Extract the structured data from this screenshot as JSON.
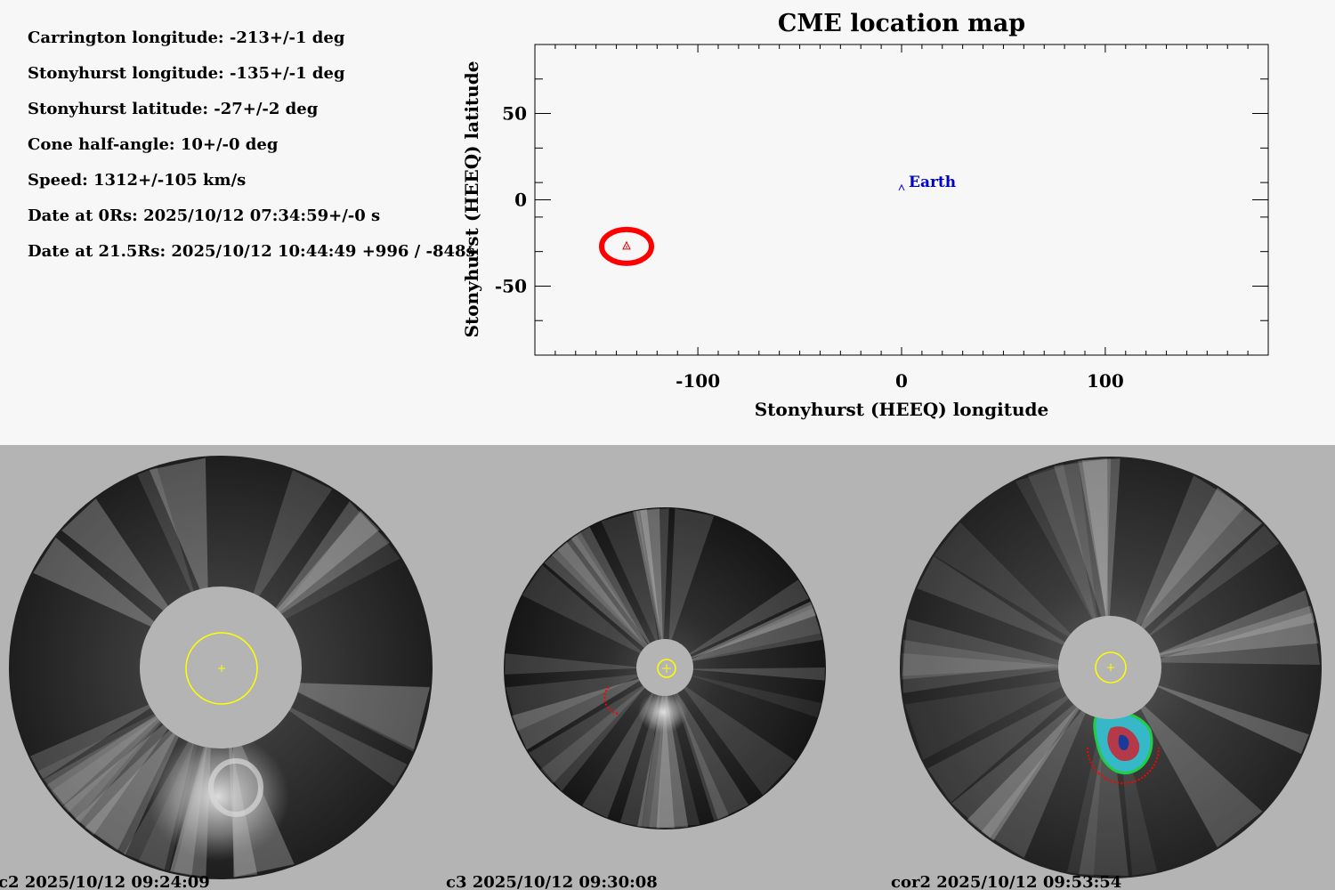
{
  "params": [
    "Carrington longitude: -213+/-1 deg",
    "Stonyhurst longitude: -135+/-1 deg",
    "Stonyhurst latitude: -27+/-2 deg",
    "Cone half-angle: 10+/-0 deg",
    "Speed: 1312+/-105 km/s",
    "Date at 0Rs: 2025/10/12 07:34:59+/-0 s",
    "Date at 21.5Rs: 2025/10/12 10:44:49 +996 / -848s"
  ],
  "chart_data": {
    "type": "scatter",
    "title": "CME location map",
    "xlabel": "Stonyhurst (HEEQ) longitude",
    "ylabel": "Stonyhurst (HEEQ) latitude",
    "xlim": [
      -180,
      180
    ],
    "ylim": [
      -90,
      90
    ],
    "xticks": [
      -100,
      0,
      100
    ],
    "xtick_labels": [
      "-100",
      "0",
      "100"
    ],
    "yticks": [
      -50,
      0,
      50
    ],
    "ytick_labels": [
      "-50",
      "0",
      "50"
    ],
    "x_minor_step": 10,
    "y_minor_step": 20,
    "grid": false,
    "points": [
      {
        "name": "Earth",
        "x": 0,
        "y": 7,
        "color": "#0000cc",
        "marker": "^"
      },
      {
        "name": "",
        "x": -135,
        "y": -27,
        "color": "#dd0000",
        "marker": "triangle-in-circle"
      }
    ],
    "colors": {
      "cme": "#ff0000",
      "earth": "#0000cc",
      "sun_circle": "#ffff00"
    }
  },
  "images": [
    {
      "caption": "c2 2025/10/12 09:24:09"
    },
    {
      "caption": "c3 2025/10/12 09:30:08"
    },
    {
      "caption": "cor2 2025/10/12 09:53:54"
    }
  ]
}
